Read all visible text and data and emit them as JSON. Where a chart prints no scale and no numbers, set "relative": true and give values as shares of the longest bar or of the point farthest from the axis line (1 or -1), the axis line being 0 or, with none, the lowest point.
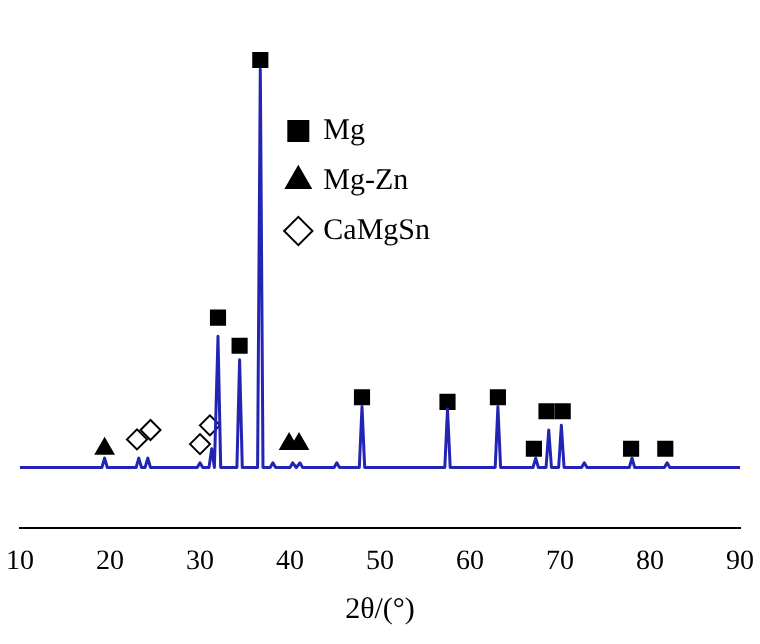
{
  "chart_data": {
    "type": "line",
    "xlabel": "2θ/(°)",
    "xlim": [
      10,
      90
    ],
    "xticks": [
      10,
      20,
      30,
      40,
      50,
      60,
      70,
      80,
      90
    ],
    "relative": true,
    "grid": false,
    "legend": "top right",
    "series": [
      {
        "color": "#2424b4",
        "marker": "none",
        "x": [
          10,
          19.1,
          19.4,
          19.7,
          22.9,
          23.2,
          23.5,
          23.9,
          24.2,
          24.5,
          29.7,
          30.0,
          30.3,
          31.0,
          31.3,
          31.6,
          31.7,
          32.0,
          32.3,
          34.1,
          34.4,
          34.7,
          36.4,
          36.7,
          37.0,
          37.8,
          38.1,
          38.4,
          40.0,
          40.3,
          40.7,
          41.1,
          41.4,
          44.9,
          45.2,
          45.5,
          47.7,
          48.0,
          48.3,
          57.2,
          57.5,
          57.8,
          62.8,
          63.1,
          63.4,
          67.0,
          67.3,
          67.6,
          68.45,
          68.75,
          69.05,
          69.85,
          70.15,
          70.45,
          72.4,
          72.7,
          73.0,
          77.7,
          78.0,
          78.3,
          81.6,
          81.9,
          82.2,
          90
        ],
        "values": [
          0.13,
          0.13,
          0.15,
          0.13,
          0.13,
          0.15,
          0.13,
          0.13,
          0.15,
          0.13,
          0.13,
          0.14,
          0.13,
          0.13,
          0.17,
          0.13,
          0.13,
          0.41,
          0.13,
          0.13,
          0.36,
          0.13,
          0.13,
          0.98,
          0.13,
          0.13,
          0.14,
          0.13,
          0.13,
          0.14,
          0.13,
          0.14,
          0.13,
          0.13,
          0.14,
          0.13,
          0.13,
          0.26,
          0.13,
          0.13,
          0.255,
          0.13,
          0.13,
          0.26,
          0.13,
          0.13,
          0.15,
          0.13,
          0.13,
          0.21,
          0.13,
          0.13,
          0.22,
          0.13,
          0.13,
          0.14,
          0.13,
          0.13,
          0.15,
          0.13,
          0.13,
          0.14,
          0.13,
          0.13
        ]
      },
      {
        "type": "scatter",
        "name": "Mg",
        "color": "#000000",
        "marker": "square",
        "x": [
          32.0,
          34.4,
          36.7,
          48.0,
          57.5,
          63.1,
          67.1,
          68.5,
          70.3,
          77.9,
          81.7
        ],
        "values": [
          0.45,
          0.39,
          1.0,
          0.28,
          0.27,
          0.28,
          0.17,
          0.25,
          0.25,
          0.17,
          0.17
        ]
      },
      {
        "type": "scatter",
        "name": "Mg-Zn",
        "color": "#000000",
        "marker": "triangle",
        "x": [
          19.4,
          39.9,
          41.0
        ],
        "values": [
          0.17,
          0.18,
          0.18
        ]
      },
      {
        "type": "scatter",
        "name": "CaMgSn",
        "color": "#000000",
        "marker": "diamond",
        "x": [
          23.0,
          24.5,
          30.0,
          31.1
        ],
        "values": [
          0.19,
          0.21,
          0.18,
          0.22
        ]
      }
    ]
  }
}
